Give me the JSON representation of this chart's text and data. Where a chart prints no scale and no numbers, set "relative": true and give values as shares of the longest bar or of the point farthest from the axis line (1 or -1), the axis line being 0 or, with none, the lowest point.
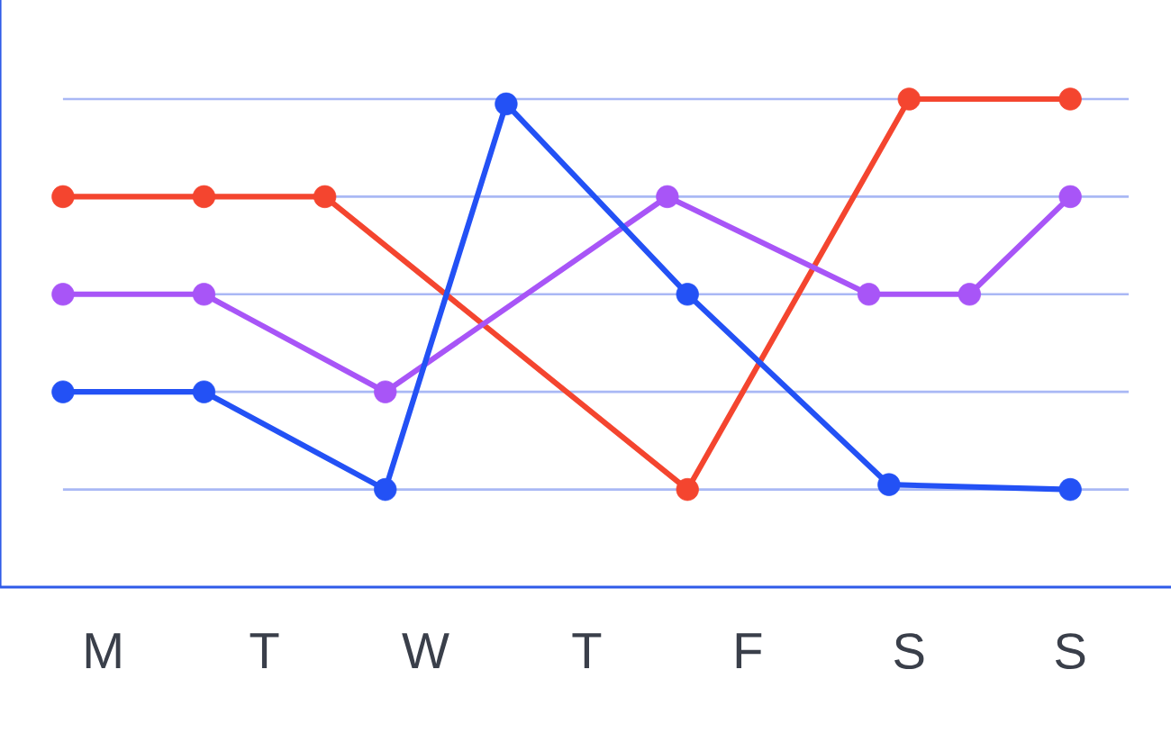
{
  "chart_data": {
    "type": "line",
    "relative": true,
    "marker": "circle",
    "line_style": "solid",
    "ref_lines": [
      {
        "axis": "y",
        "value": 0.2,
        "color": "#a9b8f5"
      },
      {
        "axis": "y",
        "value": 0.4,
        "color": "#a9b8f5"
      },
      {
        "axis": "y",
        "value": 0.6,
        "color": "#a9b8f5"
      },
      {
        "axis": "y",
        "value": 0.8,
        "color": "#a9b8f5"
      },
      {
        "axis": "y",
        "value": 1.0,
        "color": "#a9b8f5"
      }
    ],
    "categories": [
      null,
      null,
      "M",
      null,
      null,
      null,
      null,
      null,
      null,
      null,
      "T",
      null,
      null,
      null,
      null,
      null,
      null,
      null,
      "W",
      null,
      null,
      null,
      null,
      null,
      null,
      null,
      "T",
      null,
      null,
      null,
      null,
      null,
      null,
      null,
      "F",
      null,
      null,
      null,
      null,
      null,
      null,
      null,
      "S",
      null,
      null,
      null,
      null,
      null,
      null,
      null,
      "S"
    ],
    "series": [
      {
        "color": "#f4452f",
        "values": [
          0.8,
          null,
          null,
          null,
          null,
          null,
          null,
          0.8,
          null,
          null,
          null,
          null,
          null,
          0.8,
          null,
          null,
          null,
          null,
          null,
          null,
          null,
          null,
          null,
          null,
          null,
          null,
          null,
          null,
          null,
          null,
          null,
          0.2,
          null,
          null,
          null,
          null,
          null,
          null,
          null,
          null,
          null,
          null,
          1.0,
          null,
          null,
          null,
          null,
          null,
          null,
          null,
          1.0
        ]
      },
      {
        "color": "#a855f7",
        "values": [
          0.6,
          null,
          null,
          null,
          null,
          null,
          null,
          0.6,
          null,
          null,
          null,
          null,
          null,
          null,
          null,
          null,
          0.4,
          null,
          null,
          null,
          null,
          null,
          null,
          null,
          null,
          null,
          null,
          null,
          null,
          null,
          0.8,
          null,
          null,
          null,
          null,
          null,
          null,
          null,
          null,
          null,
          0.6,
          null,
          null,
          null,
          null,
          0.6,
          null,
          null,
          null,
          null,
          0.8
        ]
      },
      {
        "color": "#2351f5",
        "values": [
          0.4,
          null,
          null,
          null,
          null,
          null,
          null,
          0.4,
          null,
          null,
          null,
          null,
          null,
          null,
          null,
          null,
          0.2,
          null,
          null,
          null,
          null,
          null,
          0.99,
          null,
          null,
          null,
          null,
          null,
          null,
          null,
          null,
          0.6,
          null,
          null,
          null,
          null,
          null,
          null,
          null,
          null,
          null,
          0.21,
          null,
          null,
          null,
          null,
          null,
          null,
          null,
          null,
          0.2
        ]
      }
    ]
  }
}
